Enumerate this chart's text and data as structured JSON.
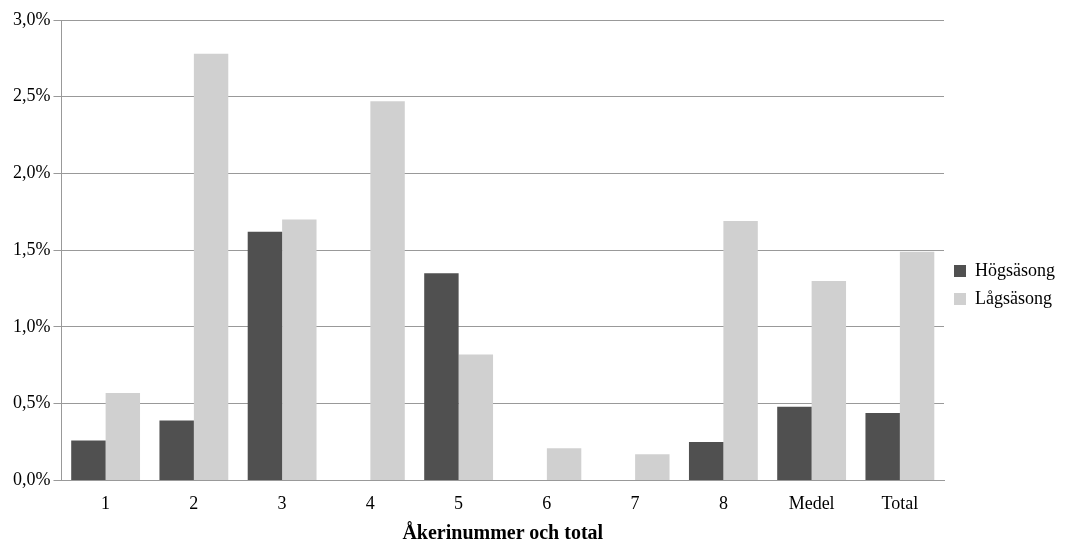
{
  "chart_data": {
    "type": "bar",
    "xlabel": "Åkerinummer och total",
    "categories": [
      "1",
      "2",
      "3",
      "4",
      "5",
      "6",
      "7",
      "8",
      "Medel",
      "Total"
    ],
    "series": [
      {
        "name": "Högsäsong",
        "color": "#505050",
        "values": [
          0.26,
          0.39,
          1.62,
          0,
          1.35,
          0,
          0,
          0.25,
          0.48,
          0.44
        ]
      },
      {
        "name": "Lågsäsong",
        "color": "#d0d0d0",
        "values": [
          0.57,
          2.78,
          1.7,
          2.47,
          0.82,
          0.21,
          0.17,
          1.69,
          1.3,
          1.49
        ]
      }
    ],
    "ylim": [
      0,
      3
    ],
    "yticks": [
      {
        "value": 0,
        "label": "0,0%"
      },
      {
        "value": 0.5,
        "label": "0,5%"
      },
      {
        "value": 1,
        "label": "1,0%"
      },
      {
        "value": 1.5,
        "label": "1,5%"
      },
      {
        "value": 2,
        "label": "2,0%"
      },
      {
        "value": 2.5,
        "label": "2,5%"
      },
      {
        "value": 3,
        "label": "3,0%"
      }
    ],
    "grid": "y",
    "legend": "right"
  }
}
